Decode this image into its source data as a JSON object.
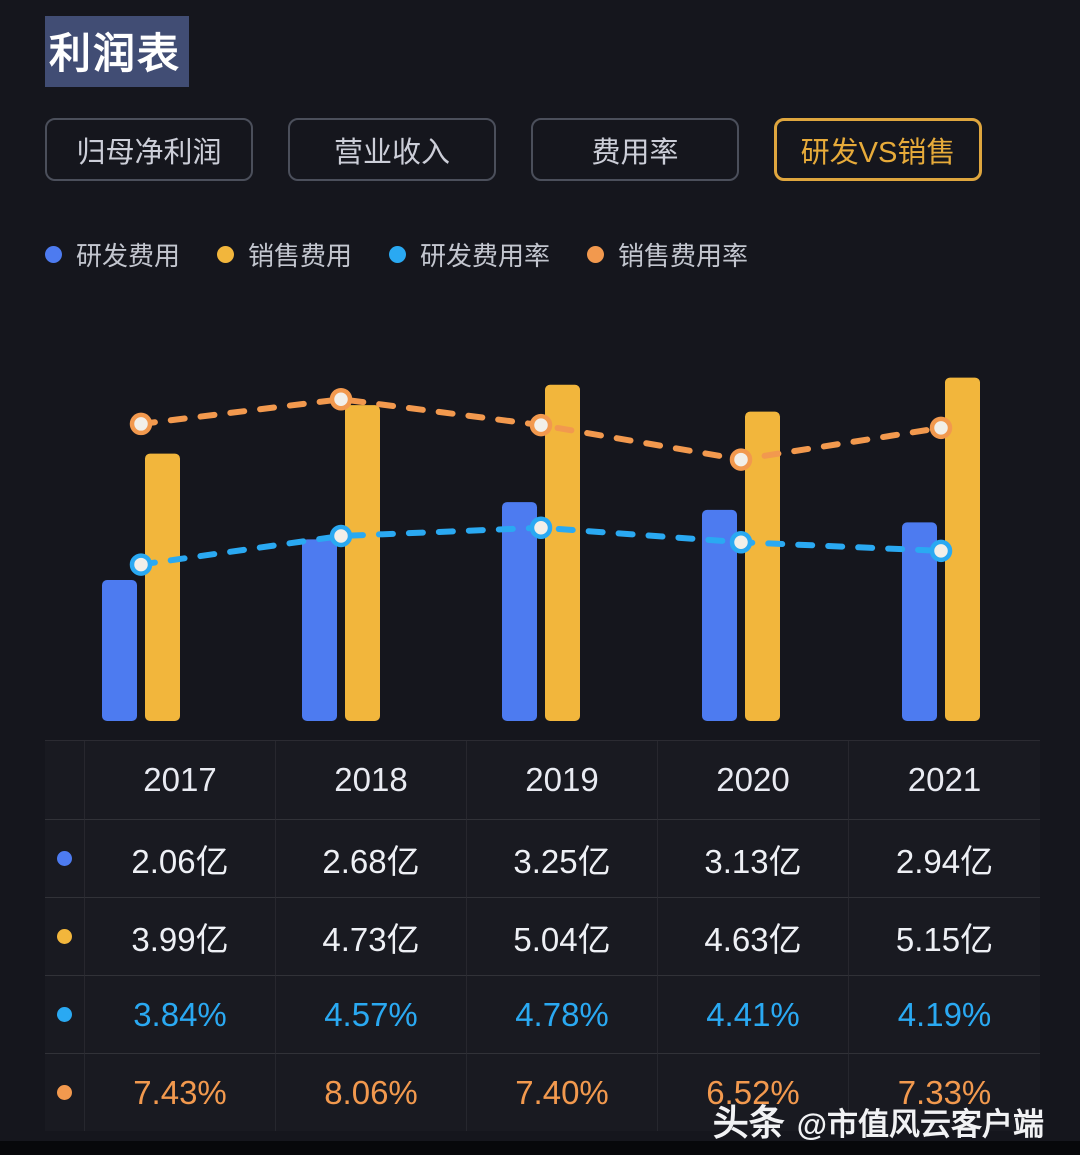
{
  "page": {
    "title": "利润表",
    "watermark": {
      "brand": "头条",
      "handle": "@市值风云客户端"
    }
  },
  "tabs": [
    {
      "key": "net-profit",
      "label": "归母净利润",
      "active": false
    },
    {
      "key": "revenue",
      "label": "营业收入",
      "active": false
    },
    {
      "key": "expense-ratio",
      "label": "费用率",
      "active": false
    },
    {
      "key": "rd-vs-sales",
      "label": "研发VS销售",
      "active": true
    }
  ],
  "legend": [
    {
      "key": "rd-expense",
      "label": "研发费用",
      "color": "#4d7bf0"
    },
    {
      "key": "sales-expense",
      "label": "销售费用",
      "color": "#f2b63c"
    },
    {
      "key": "rd-expense-rate",
      "label": "研发费用率",
      "color": "#2aa9f2"
    },
    {
      "key": "sales-expense-rate",
      "label": "销售费用率",
      "color": "#f2994e"
    }
  ],
  "chart_data": {
    "type": "bar+line",
    "title": "研发VS销售",
    "categories": [
      "2017",
      "2018",
      "2019",
      "2020",
      "2021"
    ],
    "series": [
      {
        "key": "rd-expense",
        "name": "研发费用",
        "type": "bar",
        "unit": "亿",
        "color": "#4d7bf0",
        "values": [
          2.06,
          2.68,
          3.25,
          3.13,
          2.94
        ]
      },
      {
        "key": "sales-expense",
        "name": "销售费用",
        "type": "bar",
        "unit": "亿",
        "color": "#f2b63c",
        "values": [
          3.99,
          4.73,
          5.04,
          4.63,
          5.15
        ]
      },
      {
        "key": "rd-expense-rate",
        "name": "研发费用率",
        "type": "line",
        "unit": "%",
        "color": "#2aa9f2",
        "values": [
          3.84,
          4.57,
          4.78,
          4.41,
          4.19
        ]
      },
      {
        "key": "sales-expense-rate",
        "name": "销售费用率",
        "type": "line",
        "unit": "%",
        "color": "#f2994e",
        "values": [
          7.43,
          8.06,
          7.4,
          6.52,
          7.33
        ]
      }
    ],
    "bar_axis_range": [
      0,
      5.8
    ],
    "line_axis_range": [
      0,
      9.7
    ],
    "legend_position": "top",
    "grid": false,
    "marker_fill": "#f2efe9"
  },
  "table": {
    "header": [
      "2017",
      "2018",
      "2019",
      "2020",
      "2021"
    ],
    "rows": [
      {
        "key": "rd-expense",
        "dot_color": "#4d7bf0",
        "text_color": "#eef0f5",
        "values": [
          "2.06亿",
          "2.68亿",
          "3.25亿",
          "3.13亿",
          "2.94亿"
        ]
      },
      {
        "key": "sales-expense",
        "dot_color": "#f2b63c",
        "text_color": "#eef0f5",
        "values": [
          "3.99亿",
          "4.73亿",
          "5.04亿",
          "4.63亿",
          "5.15亿"
        ]
      },
      {
        "key": "rd-expense-rate",
        "dot_color": "#2aa9f2",
        "text_color": "#2aa9f2",
        "values": [
          "3.84%",
          "4.57%",
          "4.78%",
          "4.41%",
          "4.19%"
        ]
      },
      {
        "key": "sales-expense-rate",
        "dot_color": "#f2994e",
        "text_color": "#f2994e",
        "values": [
          "7.43%",
          "8.06%",
          "7.40%",
          "6.52%",
          "7.33%"
        ]
      }
    ]
  }
}
